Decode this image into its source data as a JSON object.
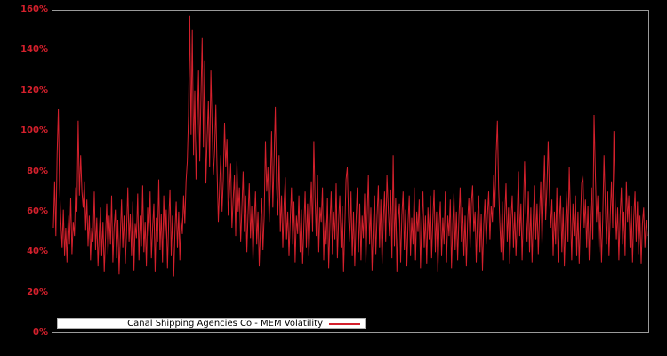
{
  "colors": {
    "background": "#000000",
    "line": "#d4202c",
    "axis_label": "#d4202c",
    "spine": "#9a9a9a",
    "legend_bg": "#ffffff",
    "legend_border": "#b0b0b0",
    "legend_text": "#000000"
  },
  "y_axis": {
    "tick_labels": [
      "0%",
      "20%",
      "40%",
      "60%",
      "80%",
      "100%",
      "120%",
      "140%",
      "160%"
    ]
  },
  "legend": {
    "label": "Canal Shipping Agencies Co - MEM Volatility"
  },
  "chart_data": {
    "type": "line",
    "title": "",
    "xlabel": "",
    "ylabel": "",
    "ylim": [
      0,
      160
    ],
    "y_unit": "percent",
    "grid": false,
    "x_tick_labels": [],
    "legend_position": "lower-left-inside",
    "series": [
      {
        "name": "Canal Shipping Agencies Co - MEM Volatility",
        "color": "#d4202c",
        "values": [
          52,
          75,
          48,
          88,
          111,
          72,
          55,
          42,
          61,
          38,
          52,
          35,
          58,
          44,
          67,
          39,
          55,
          48,
          72,
          60,
          105,
          68,
          88,
          70,
          62,
          75,
          51,
          66,
          43,
          58,
          36,
          52,
          45,
          70,
          41,
          57,
          33,
          49,
          62,
          38,
          55,
          30,
          47,
          64,
          39,
          58,
          44,
          68,
          35,
          52,
          61,
          37,
          56,
          29,
          48,
          66,
          42,
          58,
          34,
          50,
          72,
          45,
          59,
          38,
          65,
          31,
          54,
          47,
          69,
          36,
          58,
          43,
          73,
          40,
          55,
          33,
          62,
          48,
          70,
          37,
          52,
          64,
          30,
          57,
          45,
          76,
          41,
          59,
          35,
          68,
          46,
          61,
          32,
          55,
          71,
          38,
          58,
          28,
          50,
          65,
          42,
          60,
          36,
          57,
          49,
          68,
          54,
          75,
          85,
          108,
          157,
          98,
          150,
          88,
          120,
          76,
          102,
          130,
          85,
          118,
          146,
          92,
          135,
          74,
          96,
          115,
          82,
          130,
          102,
          78,
          90,
          113,
          80,
          55,
          72,
          88,
          60,
          76,
          104,
          82,
          96,
          58,
          70,
          84,
          52,
          66,
          78,
          48,
          85,
          60,
          72,
          45,
          62,
          80,
          50,
          68,
          40,
          58,
          74,
          47,
          63,
          36,
          55,
          70,
          44,
          60,
          33,
          52,
          67,
          41,
          58,
          95,
          70,
          82,
          55,
          74,
          100,
          62,
          86,
          112,
          72,
          58,
          88,
          50,
          68,
          42,
          63,
          77,
          46,
          60,
          38,
          56,
          72,
          44,
          65,
          35,
          58,
          49,
          68,
          40,
          61,
          34,
          53,
          70,
          42,
          64,
          38,
          57,
          75,
          50,
          95,
          66,
          48,
          78,
          40,
          62,
          55,
          72,
          36,
          58,
          44,
          67,
          32,
          54,
          70,
          39,
          60,
          46,
          74,
          37,
          56,
          68,
          42,
          63,
          30,
          52,
          76,
          82,
          58,
          45,
          70,
          38,
          60,
          33,
          55,
          72,
          40,
          64,
          36,
          58,
          47,
          69,
          35,
          57,
          78,
          44,
          62,
          31,
          53,
          68,
          39,
          58,
          73,
          42,
          66,
          34,
          55,
          70,
          45,
          78,
          62,
          48,
          71,
          37,
          88,
          43,
          67,
          30,
          56,
          64,
          35,
          58,
          70,
          41,
          61,
          33,
          54,
          68,
          38,
          57,
          44,
          72,
          36,
          60,
          50,
          66,
          32,
          55,
          70,
          42,
          58,
          34,
          62,
          46,
          68,
          37,
          56,
          71,
          40,
          60,
          30,
          52,
          65,
          38,
          57,
          44,
          70,
          35,
          58,
          48,
          66,
          32,
          54,
          69,
          41,
          60,
          36,
          57,
          72,
          45,
          62,
          38,
          58,
          33,
          55,
          67,
          42,
          64,
          73,
          50,
          60,
          35,
          56,
          68,
          40,
          59,
          31,
          53,
          66,
          44,
          58,
          70,
          46,
          63,
          55,
          78,
          62,
          88,
          105,
          72,
          55,
          40,
          65,
          36,
          58,
          74,
          45,
          62,
          34,
          56,
          68,
          42,
          60,
          38,
          57,
          80,
          48,
          64,
          36,
          58,
          85,
          60,
          45,
          70,
          40,
          62,
          35,
          57,
          73,
          46,
          64,
          39,
          58,
          75,
          44,
          66,
          88,
          56,
          72,
          95,
          70,
          52,
          66,
          38,
          60,
          44,
          72,
          35,
          56,
          68,
          40,
          62,
          33,
          55,
          70,
          45,
          82,
          58,
          36,
          64,
          48,
          68,
          38,
          60,
          34,
          56,
          74,
          78,
          52,
          66,
          42,
          63,
          36,
          58,
          72,
          46,
          108,
          80,
          55,
          68,
          40,
          60,
          35,
          57,
          88,
          64,
          44,
          70,
          38,
          58,
          75,
          52,
          100,
          66,
          46,
          62,
          36,
          58,
          72,
          44,
          60,
          38,
          75,
          55,
          68,
          42,
          63,
          35,
          57,
          70,
          45,
          65,
          39,
          58,
          34,
          54,
          62,
          42,
          56,
          48
        ]
      }
    ]
  }
}
